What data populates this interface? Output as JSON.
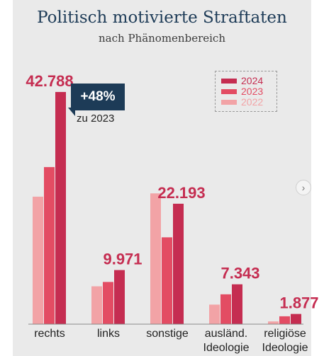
{
  "chart_data": {
    "type": "bar",
    "title": "Politisch motivierte Straftaten",
    "subtitle": "nach Phänomenbereich",
    "categories": [
      [
        "rechts"
      ],
      [
        "links"
      ],
      [
        "sonstige"
      ],
      [
        "ausländ.",
        "Ideologie"
      ],
      [
        "religiöse",
        "Ideologie"
      ]
    ],
    "series": [
      {
        "name": "2022",
        "color": "#f2a3a6",
        "values": [
          23493,
          6976,
          24100,
          3600,
          500
        ]
      },
      {
        "name": "2023",
        "color": "#e34c63",
        "values": [
          28945,
          7777,
          16000,
          5500,
          1450
        ]
      },
      {
        "name": "2024",
        "color": "#c52d51",
        "values": [
          42788,
          9971,
          22193,
          7343,
          1877
        ]
      }
    ],
    "value_labels": [
      "42.788",
      "9.971",
      "22.193",
      "7.343",
      "1.877"
    ],
    "value_label_series": "2024",
    "legend_order": [
      "2024",
      "2023",
      "2022"
    ],
    "legend_position": "top-right",
    "ylim": [
      0,
      45000
    ],
    "grid": false,
    "annotation": {
      "label": "+48%",
      "note": "zu 2023",
      "category": "rechts"
    },
    "colors": {
      "title": "#1d3b57",
      "value_label": "#c52d51",
      "callout": "#1d3b57",
      "background": "#eaeaea"
    }
  },
  "nav": {
    "next_icon": "›"
  }
}
